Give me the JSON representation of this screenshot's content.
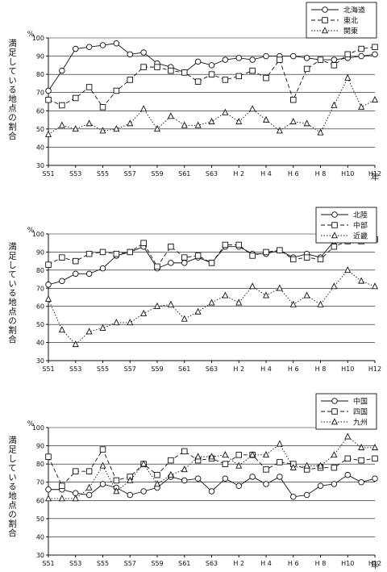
{
  "chart_data": [
    {
      "type": "line",
      "unit_label": "%",
      "ylabel": "満足している地点の割合",
      "xlabel": "年",
      "ylim": [
        30,
        100
      ],
      "yticks": [
        30,
        40,
        50,
        60,
        70,
        80,
        90,
        100
      ],
      "x_tick_labels": [
        "S51",
        "S53",
        "S55",
        "S57",
        "S59",
        "S61",
        "S63",
        "H 2",
        "H 4",
        "H 6",
        "H 8",
        "H10",
        "H12"
      ],
      "categories": [
        "S51",
        "S52",
        "S53",
        "S54",
        "S55",
        "S56",
        "S57",
        "S58",
        "S59",
        "S60",
        "S61",
        "S62",
        "S63",
        "H1",
        "H2",
        "H3",
        "H4",
        "H5",
        "H6",
        "H7",
        "H8",
        "H9",
        "H10",
        "H11",
        "H12"
      ],
      "legend_position": "top-right",
      "series": [
        {
          "name": "北海道",
          "marker": "circle",
          "dash": "solid",
          "values": [
            71,
            82,
            94,
            95,
            96,
            97,
            91,
            92,
            86,
            84,
            81,
            87,
            85,
            88,
            89,
            88,
            90,
            90,
            90,
            89,
            88,
            88,
            89,
            90,
            91
          ]
        },
        {
          "name": "東北",
          "marker": "square",
          "dash": "dashed",
          "values": [
            66,
            63,
            67,
            73,
            62,
            71,
            77,
            84,
            84,
            82,
            81,
            76,
            80,
            77,
            79,
            82,
            78,
            88,
            66,
            83,
            88,
            85,
            91,
            94,
            95
          ]
        },
        {
          "name": "関東",
          "marker": "triangle",
          "dash": "dotted",
          "values": [
            47,
            52,
            50,
            53,
            49,
            50,
            53,
            61,
            50,
            57,
            52,
            52,
            54,
            59,
            54,
            61,
            55,
            49,
            54,
            53,
            48,
            63,
            78,
            62,
            66
          ]
        }
      ]
    },
    {
      "type": "line",
      "unit_label": "%",
      "ylabel": "満足している地点の割合",
      "xlabel": "",
      "ylim": [
        30,
        100
      ],
      "yticks": [
        30,
        40,
        50,
        60,
        70,
        80,
        90,
        100
      ],
      "x_tick_labels": [
        "S51",
        "S53",
        "S55",
        "S57",
        "S59",
        "S61",
        "S63",
        "H 2",
        "H 4",
        "H 6",
        "H 8",
        "H10",
        "H12"
      ],
      "categories": [
        "S51",
        "S52",
        "S53",
        "S54",
        "S55",
        "S56",
        "S57",
        "S58",
        "S59",
        "S60",
        "S61",
        "S62",
        "S63",
        "H1",
        "H2",
        "H3",
        "H4",
        "H5",
        "H6",
        "H7",
        "H8",
        "H9",
        "H10",
        "H11",
        "H12"
      ],
      "legend_position": "top-right",
      "series": [
        {
          "name": "北陸",
          "marker": "circle",
          "dash": "solid",
          "values": [
            72,
            74,
            78,
            78,
            81,
            88,
            90,
            93,
            81,
            84,
            84,
            87,
            84,
            93,
            93,
            89,
            89,
            91,
            87,
            89,
            87,
            96,
            96,
            97,
            97
          ]
        },
        {
          "name": "中部",
          "marker": "square",
          "dash": "dashed",
          "values": [
            83,
            87,
            85,
            89,
            90,
            89,
            90,
            95,
            82,
            93,
            87,
            88,
            84,
            94,
            94,
            88,
            90,
            91,
            86,
            87,
            86,
            93,
            96,
            96,
            97
          ]
        },
        {
          "name": "近畿",
          "marker": "triangle",
          "dash": "dotted",
          "values": [
            64,
            47,
            39,
            46,
            48,
            51,
            51,
            56,
            60,
            61,
            53,
            57,
            62,
            66,
            62,
            71,
            66,
            70,
            61,
            66,
            61,
            71,
            80,
            74,
            71
          ]
        }
      ]
    },
    {
      "type": "line",
      "unit_label": "%",
      "ylabel": "満足している地点の割合",
      "xlabel": "年",
      "ylim": [
        30,
        100
      ],
      "yticks": [
        30,
        40,
        50,
        60,
        70,
        80,
        90,
        100
      ],
      "x_tick_labels": [
        "S51",
        "S53",
        "S55",
        "S57",
        "S59",
        "S61",
        "S63",
        "H 2",
        "H 4",
        "H 6",
        "H 8",
        "H10",
        "H12"
      ],
      "categories": [
        "S51",
        "S52",
        "S53",
        "S54",
        "S55",
        "S56",
        "S57",
        "S58",
        "S59",
        "S60",
        "S61",
        "S62",
        "S63",
        "H1",
        "H2",
        "H3",
        "H4",
        "H5",
        "H6",
        "H7",
        "H8",
        "H9",
        "H10",
        "H11",
        "H12"
      ],
      "legend_position": "top-right",
      "series": [
        {
          "name": "中国",
          "marker": "circle",
          "dash": "solid",
          "values": [
            66,
            66,
            64,
            63,
            69,
            67,
            63,
            65,
            67,
            73,
            71,
            72,
            65,
            72,
            68,
            73,
            69,
            73,
            62,
            63,
            68,
            69,
            74,
            70,
            72
          ]
        },
        {
          "name": "四国",
          "marker": "square",
          "dash": "dashed",
          "values": [
            84,
            68,
            76,
            76,
            88,
            71,
            73,
            80,
            74,
            82,
            87,
            82,
            83,
            80,
            85,
            85,
            77,
            81,
            80,
            77,
            78,
            78,
            83,
            82,
            83
          ]
        },
        {
          "name": "九州",
          "marker": "triangle",
          "dash": "dotted",
          "values": [
            61,
            61,
            61,
            67,
            79,
            65,
            71,
            80,
            69,
            74,
            77,
            84,
            84,
            85,
            79,
            85,
            85,
            91,
            78,
            79,
            79,
            85,
            95,
            89,
            89
          ]
        }
      ]
    }
  ]
}
